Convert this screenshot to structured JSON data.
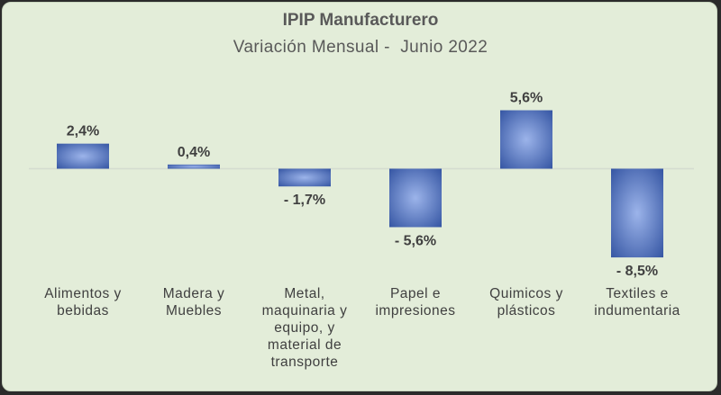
{
  "chart_data": {
    "type": "bar",
    "title": "IPIP Manufacturero",
    "subtitle": "Variación Mensual -  Junio 2022",
    "categories": [
      "Alimentos y bebidas",
      "Madera y Muebles",
      "Metal, maquinaria y equipo, y material de transporte",
      "Papel e impresiones",
      "Quimicos y plásticos",
      "Textiles e indumentaria"
    ],
    "category_lines": [
      [
        "Alimentos y",
        "bebidas"
      ],
      [
        "Madera y",
        "Muebles"
      ],
      [
        "Metal,",
        "maquinaria y",
        "equipo, y",
        "material de",
        "transporte"
      ],
      [
        "Papel e",
        "impresiones"
      ],
      [
        "Quimicos y",
        "plásticos"
      ],
      [
        "Textiles e",
        "indumentaria"
      ]
    ],
    "values": [
      2.4,
      0.4,
      -1.7,
      -5.6,
      5.6,
      -8.5
    ],
    "data_labels": [
      "2,4%",
      "0,4%",
      "- 1,7%",
      "- 5,6%",
      "5,6%",
      "- 8,5%"
    ],
    "unit": "%",
    "ylim": [
      -10,
      6
    ],
    "grid": false,
    "legend": "none",
    "colors": {
      "bar_dark": "#2e4f9e",
      "bar_light": "#9cb4ea",
      "background": "#e3edd9",
      "axis": "#d4dcd0",
      "text": "#404040",
      "title": "#595959"
    }
  }
}
